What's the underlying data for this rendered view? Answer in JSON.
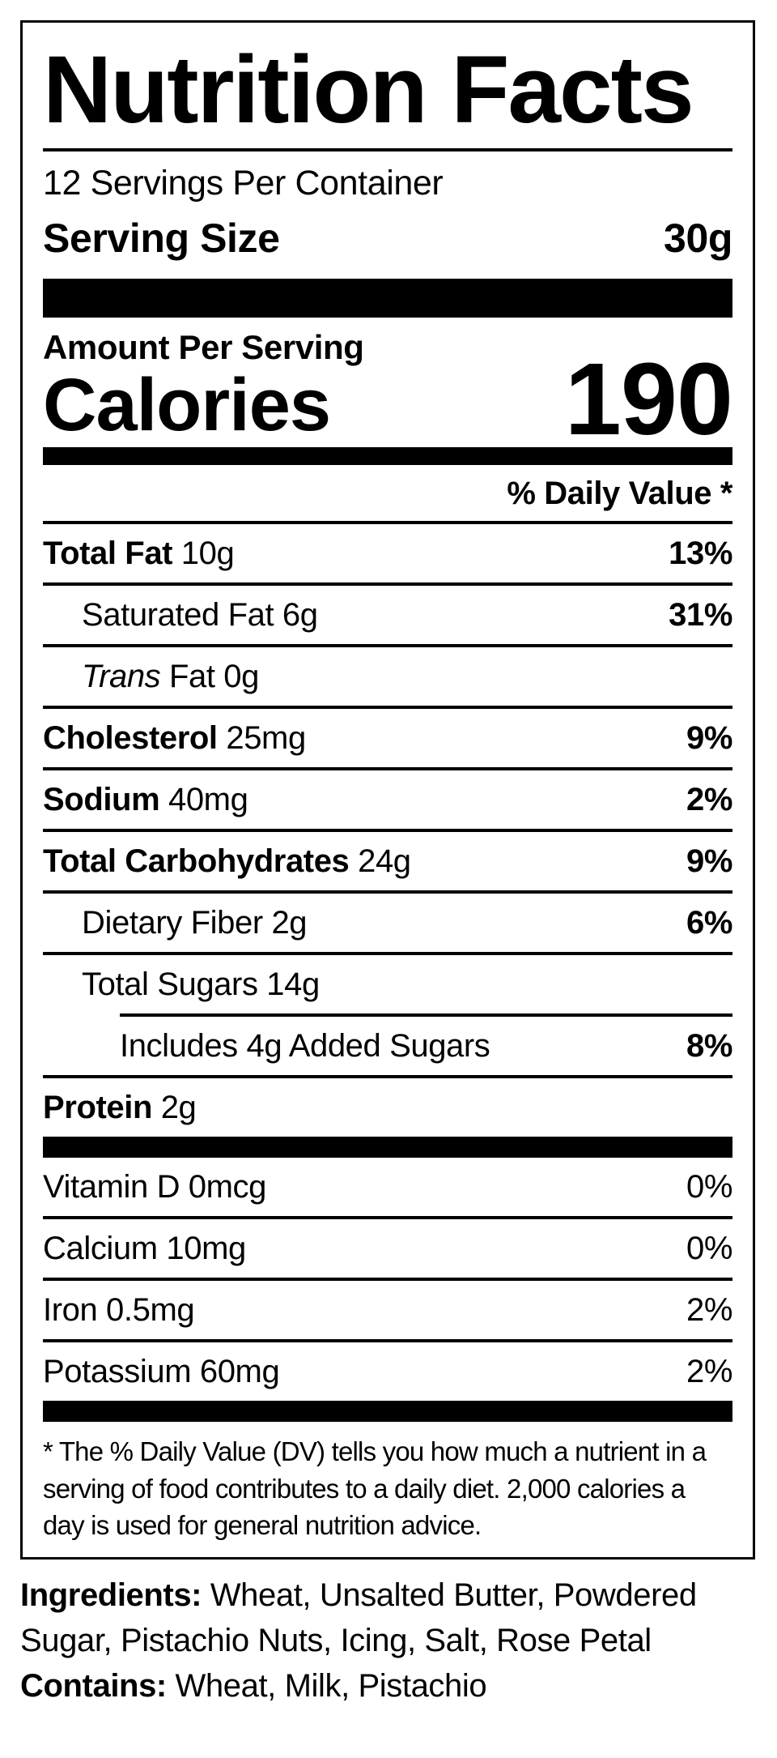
{
  "colors": {
    "ink": "#000000",
    "paper": "#ffffff"
  },
  "label": {
    "title": "Nutrition Facts",
    "servings_per_container": "12 Servings Per Container",
    "serving_size_label": "Serving Size",
    "serving_size_value": "30g",
    "amount_per_serving": "Amount Per Serving",
    "calories_label": "Calories",
    "calories_value": "190",
    "daily_value_header": "% Daily Value *",
    "nutrients": [
      {
        "lead": "Total Fat",
        "lead_bold": true,
        "lead_italic": false,
        "rest": " 10g",
        "percent": "13%",
        "indent": 0,
        "partial_rule": false
      },
      {
        "lead": "Saturated Fat",
        "lead_bold": false,
        "lead_italic": false,
        "rest": " 6g",
        "percent": "31%",
        "indent": 1,
        "partial_rule": false
      },
      {
        "lead": "Trans",
        "lead_bold": false,
        "lead_italic": true,
        "rest": " Fat 0g",
        "percent": "",
        "indent": 1,
        "partial_rule": false
      },
      {
        "lead": "Cholesterol",
        "lead_bold": true,
        "lead_italic": false,
        "rest": " 25mg",
        "percent": "9%",
        "indent": 0,
        "partial_rule": false
      },
      {
        "lead": "Sodium",
        "lead_bold": true,
        "lead_italic": false,
        "rest": " 40mg",
        "percent": "2%",
        "indent": 0,
        "partial_rule": false
      },
      {
        "lead": "Total Carbohydrates",
        "lead_bold": true,
        "lead_italic": false,
        "rest": " 24g",
        "percent": "9%",
        "indent": 0,
        "partial_rule": false
      },
      {
        "lead": "Dietary Fiber",
        "lead_bold": false,
        "lead_italic": false,
        "rest": " 2g",
        "percent": "6%",
        "indent": 1,
        "partial_rule": false
      },
      {
        "lead": "Total Sugars",
        "lead_bold": false,
        "lead_italic": false,
        "rest": " 14g",
        "percent": "",
        "indent": 1,
        "partial_rule": false
      },
      {
        "lead": "",
        "lead_bold": false,
        "lead_italic": false,
        "rest": "Includes 4g Added Sugars",
        "percent": "8%",
        "indent": 2,
        "partial_rule": true
      },
      {
        "lead": "Protein",
        "lead_bold": true,
        "lead_italic": false,
        "rest": " 2g",
        "percent": "",
        "indent": 0,
        "partial_rule": false
      }
    ],
    "vitamins": [
      {
        "text": "Vitamin D 0mcg",
        "percent": "0%"
      },
      {
        "text": "Calcium 10mg",
        "percent": "0%"
      },
      {
        "text": "Iron 0.5mg",
        "percent": "2%"
      },
      {
        "text": "Potassium 60mg",
        "percent": "2%"
      }
    ],
    "footnote": "* The % Daily Value (DV) tells you how much a nutrient in a serving of food contributes to a daily diet. 2,000 calories a day is used for general nutrition advice."
  },
  "ingredients": {
    "label": "Ingredients:",
    "text": " Wheat, Unsalted Butter, Powdered Sugar, Pistachio Nuts, Icing, Salt, Rose Petal",
    "contains_label": "Contains:",
    "contains_text": " Wheat, Milk, Pistachio"
  }
}
